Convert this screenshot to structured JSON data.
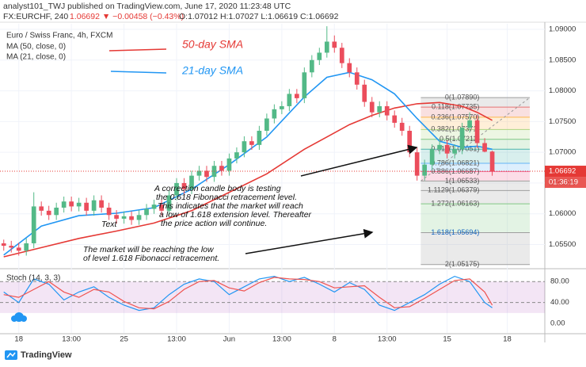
{
  "chart_data": {
    "type": "candlestick",
    "header": {
      "publisher": "analyst101_TWJ published on TradingView.com, June 17, 2020 11:23:48 UTC",
      "symbol": "FX:EURCHF, 240",
      "change": "1.06692 ▼ −0.00458 (−0.43%)",
      "ohlc_text": "O:1.07012 H:1.07027 L:1.06619 C:1.06692"
    },
    "title": "Euro / Swiss Franc, 4h, FXCM",
    "indicators": [
      "MA (50, close, 0)",
      "MA (21, close, 0)"
    ],
    "xlim": [
      -0.5,
      72
    ],
    "xticks": [
      {
        "value": 2,
        "label": "18"
      },
      {
        "value": 9,
        "label": "13:00"
      },
      {
        "value": 16,
        "label": "25"
      },
      {
        "value": 23,
        "label": "13:00"
      },
      {
        "value": 30,
        "label": "Jun"
      },
      {
        "value": 37,
        "label": "13:00"
      },
      {
        "value": 44,
        "label": "8"
      },
      {
        "value": 51,
        "label": "13:00"
      },
      {
        "value": 59,
        "label": "15"
      },
      {
        "value": 67,
        "label": "18"
      }
    ],
    "ylim": [
      1.0512,
      1.0909
    ],
    "yticks": [
      {
        "value": 1.09,
        "label": "1.09000"
      },
      {
        "value": 1.085,
        "label": "1.08500"
      },
      {
        "value": 1.08,
        "label": "1.08000"
      },
      {
        "value": 1.075,
        "label": "1.07500"
      },
      {
        "value": 1.07,
        "label": "1.07000"
      },
      {
        "value": 1.065,
        "label": "1.06500"
      },
      {
        "value": 1.06,
        "label": "1.06000"
      },
      {
        "value": 1.055,
        "label": "1.05500"
      }
    ],
    "up_color": "#53b987",
    "down_color": "#eb4d5c",
    "candles": [
      [
        1.0552,
        1.0558,
        1.054,
        1.0548
      ],
      [
        1.0548,
        1.0556,
        1.0537,
        1.0545
      ],
      [
        1.0545,
        1.0553,
        1.0532,
        1.054
      ],
      [
        1.054,
        1.056,
        1.0532,
        1.0552
      ],
      [
        1.0552,
        1.0635,
        1.0544,
        1.0612
      ],
      [
        1.0612,
        1.062,
        1.0597,
        1.0605
      ],
      [
        1.0605,
        1.0613,
        1.059,
        1.0598
      ],
      [
        1.0598,
        1.0618,
        1.059,
        1.061
      ],
      [
        1.061,
        1.0628,
        1.0602,
        1.062
      ],
      [
        1.062,
        1.0628,
        1.0604,
        1.0612
      ],
      [
        1.0612,
        1.0626,
        1.0604,
        1.0618
      ],
      [
        1.0618,
        1.0626,
        1.0597,
        1.0605
      ],
      [
        1.0605,
        1.063,
        1.0597,
        1.0622
      ],
      [
        1.0622,
        1.063,
        1.0602,
        1.061
      ],
      [
        1.061,
        1.0618,
        1.059,
        1.0598
      ],
      [
        1.0598,
        1.0606,
        1.0584,
        1.0592
      ],
      [
        1.0592,
        1.0604,
        1.0584,
        1.0596
      ],
      [
        1.0596,
        1.0604,
        1.0582,
        1.059
      ],
      [
        1.059,
        1.0606,
        1.0582,
        1.0598
      ],
      [
        1.0598,
        1.0616,
        1.059,
        1.0608
      ],
      [
        1.0608,
        1.0623,
        1.06,
        1.0615
      ],
      [
        1.0615,
        1.0623,
        1.0597,
        1.0605
      ],
      [
        1.0605,
        1.0638,
        1.0597,
        1.063
      ],
      [
        1.063,
        1.0658,
        1.0622,
        1.065
      ],
      [
        1.065,
        1.0658,
        1.0632,
        1.064
      ],
      [
        1.064,
        1.067,
        1.0632,
        1.0662
      ],
      [
        1.0662,
        1.0678,
        1.0654,
        1.067
      ],
      [
        1.067,
        1.0678,
        1.0652,
        1.066
      ],
      [
        1.066,
        1.0686,
        1.0652,
        1.0678
      ],
      [
        1.0678,
        1.0686,
        1.0662,
        1.067
      ],
      [
        1.067,
        1.0698,
        1.0662,
        1.069
      ],
      [
        1.069,
        1.0708,
        1.0682,
        1.07
      ],
      [
        1.07,
        1.0726,
        1.0692,
        1.0718
      ],
      [
        1.0718,
        1.0726,
        1.0704,
        1.0712
      ],
      [
        1.0712,
        1.0743,
        1.0704,
        1.0735
      ],
      [
        1.0735,
        1.0763,
        1.0727,
        1.0755
      ],
      [
        1.0755,
        1.0778,
        1.0747,
        1.077
      ],
      [
        1.077,
        1.0783,
        1.0762,
        1.0775
      ],
      [
        1.0775,
        1.0803,
        1.0767,
        1.0795
      ],
      [
        1.0795,
        1.0803,
        1.078,
        1.0788
      ],
      [
        1.0788,
        1.0838,
        1.078,
        1.083
      ],
      [
        1.083,
        1.0858,
        1.0822,
        1.085
      ],
      [
        1.085,
        1.087,
        1.0842,
        1.0862
      ],
      [
        1.0862,
        1.0905,
        1.0854,
        1.088
      ],
      [
        1.088,
        1.089,
        1.0862,
        1.087
      ],
      [
        1.087,
        1.0878,
        1.0837,
        1.0845
      ],
      [
        1.0845,
        1.0853,
        1.0822,
        1.083
      ],
      [
        1.083,
        1.0838,
        1.0802,
        1.081
      ],
      [
        1.081,
        1.0818,
        1.0774,
        1.0782
      ],
      [
        1.0782,
        1.079,
        1.0757,
        1.0765
      ],
      [
        1.0765,
        1.0783,
        1.0757,
        1.0775
      ],
      [
        1.0775,
        1.0783,
        1.0752,
        1.076
      ],
      [
        1.076,
        1.0768,
        1.074,
        1.0748
      ],
      [
        1.0748,
        1.0756,
        1.0727,
        1.0735
      ],
      [
        1.0735,
        1.0743,
        1.0692,
        1.07
      ],
      [
        1.07,
        1.0708,
        1.0654,
        1.0662
      ],
      [
        1.0662,
        1.0688,
        1.0654,
        1.068
      ],
      [
        1.068,
        1.0713,
        1.0672,
        1.0705
      ],
      [
        1.0705,
        1.072,
        1.0697,
        1.0712
      ],
      [
        1.0712,
        1.072,
        1.069,
        1.0698
      ],
      [
        1.0698,
        1.0713,
        1.069,
        1.0705
      ],
      [
        1.0705,
        1.0748,
        1.0697,
        1.074
      ],
      [
        1.074,
        1.0765,
        1.0732,
        1.0752
      ],
      [
        1.0752,
        1.076,
        1.0707,
        1.0715
      ],
      [
        1.0715,
        1.0723,
        1.07,
        1.0701
      ],
      [
        1.07012,
        1.07027,
        1.06619,
        1.06692
      ]
    ],
    "ma_x": [
      0,
      5,
      10,
      15,
      20,
      25,
      30,
      35,
      40,
      43,
      46,
      49,
      52,
      55,
      58,
      61,
      63,
      65
    ],
    "series": [
      {
        "name": "50-day SMA",
        "color": "#e53935",
        "values": [
          1.053,
          1.0545,
          1.056,
          1.0572,
          1.0585,
          1.0605,
          1.0635,
          1.0665,
          1.0705,
          1.0725,
          1.0745,
          1.076,
          1.0772,
          1.0779,
          1.0781,
          1.0775,
          1.0765,
          1.0752
        ]
      },
      {
        "name": "21-day SMA",
        "color": "#2196f3",
        "values": [
          1.0533,
          1.058,
          1.0597,
          1.0601,
          1.061,
          1.064,
          1.068,
          1.0725,
          1.079,
          1.0822,
          1.083,
          1.0818,
          1.0795,
          1.0755,
          1.0718,
          1.0708,
          1.071,
          1.0705
        ]
      }
    ],
    "last_price": {
      "value": 1.06692,
      "label": "1.06692",
      "countdown": "01:36:19"
    },
    "fib": {
      "start": 55.5,
      "end": 70,
      "colors": [
        "#9e9e9e",
        "#e57373",
        "#ffb74d",
        "#aed581",
        "#81c784",
        "#4db6ac",
        "#64b5f6",
        "#f06292",
        "#9e9e9e",
        "#9e9e9e",
        "#81c784",
        "#9e9e9e"
      ],
      "levels": [
        {
          "value": 1.0789,
          "label": "0(1.07890)"
        },
        {
          "value": 1.07735,
          "label": "0.118(1.07735)"
        },
        {
          "value": 1.0757,
          "label": "0.236(1.07570)"
        },
        {
          "value": 1.07371,
          "label": "0.382(1.07371)"
        },
        {
          "value": 1.07211,
          "label": "0.5(1.07211)"
        },
        {
          "value": 1.07051,
          "label": "0.618(1.07051)"
        },
        {
          "value": 1.06821,
          "label": "0.786(1.06821)"
        },
        {
          "value": 1.06687,
          "label": "0.886(1.06687)"
        },
        {
          "value": 1.06533,
          "label": "1(1.06533)"
        },
        {
          "value": 1.06379,
          "label": "1.1129(1.06379)"
        },
        {
          "value": 1.06163,
          "label": "1.272(1.06163)"
        },
        {
          "value": 1.05694,
          "label": "1.618(1.05694)"
        },
        {
          "value": 1.05175,
          "label": "2(1.05175)"
        }
      ]
    },
    "annotations": [
      [
        "A correction candle body is testing",
        "the 0.618 Fibonacci retracement level.",
        "This indicates that the market will reach",
        "a low of 1.618 extension level. Thereafter",
        "the price action will continue."
      ],
      [
        "The market will be reaching the low",
        "of level 1.618 Fibonacci retracement."
      ],
      [
        "Text"
      ]
    ],
    "stoch": {
      "title": "Stoch (14, 3, 3)",
      "ylim": [
        -18,
        100
      ],
      "yticks": [
        {
          "value": 80,
          "label": "80.00"
        },
        {
          "value": 40,
          "label": "40.00"
        },
        {
          "value": 0,
          "label": "0.00"
        }
      ],
      "x": [
        0,
        2,
        4,
        6,
        8,
        10,
        12,
        14,
        16,
        18,
        20,
        22,
        24,
        26,
        28,
        30,
        32,
        34,
        36,
        38,
        40,
        42,
        44,
        46,
        48,
        50,
        52,
        54,
        56,
        58,
        60,
        62,
        64,
        65
      ],
      "k": {
        "color": "#2196f3",
        "values": [
          60,
          40,
          85,
          75,
          45,
          60,
          70,
          50,
          35,
          25,
          30,
          55,
          75,
          85,
          80,
          55,
          70,
          85,
          90,
          80,
          88,
          75,
          60,
          78,
          65,
          35,
          25,
          40,
          55,
          75,
          90,
          80,
          40,
          30
        ]
      },
      "d": {
        "color": "#ef5350",
        "values": [
          55,
          50,
          65,
          80,
          60,
          50,
          65,
          60,
          42,
          30,
          28,
          42,
          65,
          80,
          82,
          68,
          62,
          78,
          88,
          85,
          84,
          80,
          68,
          70,
          72,
          50,
          30,
          32,
          48,
          65,
          82,
          85,
          60,
          35
        ]
      }
    },
    "footer": "TradingView"
  }
}
